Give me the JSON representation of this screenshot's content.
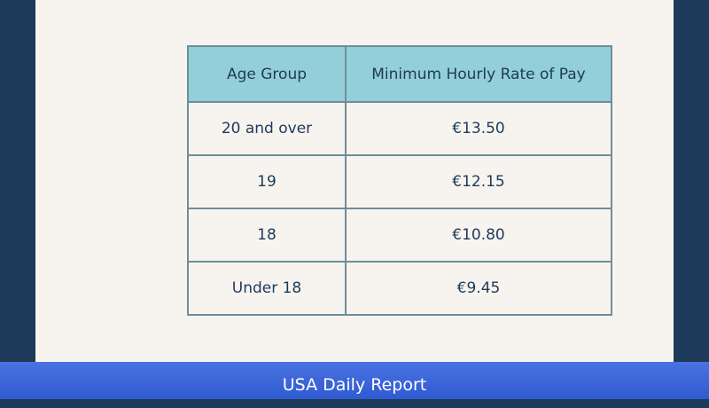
{
  "table": {
    "header": [
      "Age Group",
      "Minimum Hourly Rate of Pay"
    ],
    "rows": [
      [
        "20 and over",
        "€13.50"
      ],
      [
        "19",
        "€12.15"
      ],
      [
        "18",
        "€10.80"
      ],
      [
        "Under 18",
        "€9.45"
      ]
    ]
  },
  "banner": {
    "text": "USA Daily Report"
  }
}
